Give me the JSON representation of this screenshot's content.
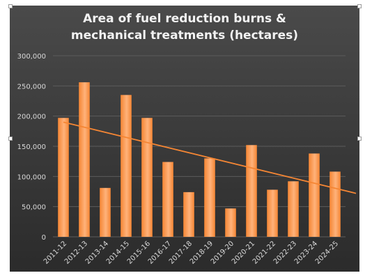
{
  "chart_data": {
    "type": "bar",
    "title": "Area of fuel reduction burns & mechanical treatments (hectares)",
    "title_lines": [
      "Area of fuel reduction burns &",
      "mechanical treatments (hectares)"
    ],
    "categories": [
      "2011-12",
      "2012-13",
      "2013-14",
      "2014-15",
      "2015-16",
      "2016-17",
      "2017-18",
      "2018-19",
      "2019-20",
      "2020-21",
      "2021-22",
      "2022-23",
      "2023-24",
      "2024-25"
    ],
    "values": [
      197000,
      256000,
      81000,
      235000,
      197000,
      124000,
      74000,
      130000,
      47000,
      152000,
      78000,
      92000,
      138000,
      108000
    ],
    "trendline": {
      "type": "linear",
      "start": 190000,
      "end": 72000
    },
    "ylim": [
      0,
      300000
    ],
    "y_ticks": [
      "0",
      "50,000",
      "100,000",
      "150,000",
      "200,000",
      "250,000",
      "300,000"
    ],
    "y_tick_values": [
      0,
      50000,
      100000,
      150000,
      200000,
      250000,
      300000
    ],
    "xlabel": "",
    "ylabel": "",
    "grid": true,
    "legend": "none",
    "colors": {
      "background_top": "#4a4a4a",
      "background_bottom": "#2b2b2b",
      "bar": "#f58634",
      "bar_edge": "#ffb27a",
      "trendline": "#f58634",
      "grid": "#5c5c5c",
      "text": "#d9d9d9",
      "title": "#f2f2f2"
    }
  }
}
